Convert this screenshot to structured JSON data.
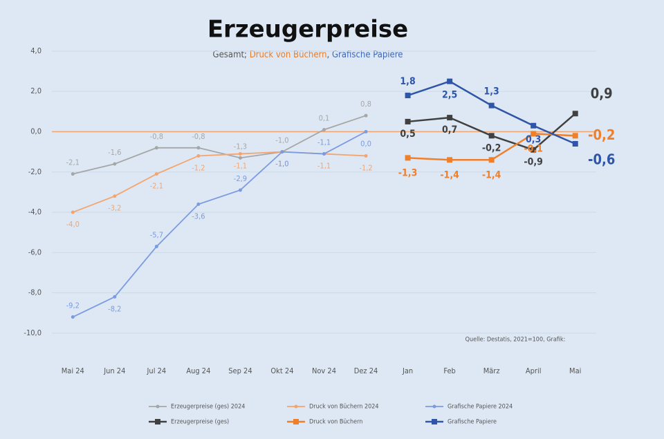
{
  "chart_data": {
    "type": "line",
    "title": "Erzeugerpreise",
    "subtitle": [
      {
        "text": "Gesamt; ",
        "color": "#555555"
      },
      {
        "text": "Druck von Büchern",
        "color": "#e87d2c"
      },
      {
        "text": ", ",
        "color": "#555555"
      },
      {
        "text": "Grafische Papiere",
        "color": "#3f67b5"
      }
    ],
    "source": "Quelle: Destatis, 2021=100, Grafik:",
    "categories": [
      "Mai 24",
      "Jun 24",
      "Jul 24",
      "Aug 24",
      "Sep 24",
      "Okt 24",
      "Nov 24",
      "Dez 24",
      "Jan",
      "Feb",
      "März",
      "April",
      "Mai"
    ],
    "ylim": [
      -10.5,
      4.5
    ],
    "yticks": [
      {
        "value": 4,
        "label": "4,0"
      },
      {
        "value": 2,
        "label": "2,0"
      },
      {
        "value": 0,
        "label": "0,0"
      },
      {
        "value": -2,
        "label": "-2,0"
      },
      {
        "value": -4,
        "label": "-4,0"
      },
      {
        "value": -6,
        "label": "-6,0"
      },
      {
        "value": -8,
        "label": "-8,0"
      },
      {
        "value": -10,
        "label": "-10,0"
      }
    ],
    "grid": true,
    "zero_line_color": "#f2a36b",
    "series": [
      {
        "name": "Erzeugerpreise (ges) 2024",
        "color": "#a6a6a6",
        "style": "light",
        "values": [
          -2.1,
          -1.6,
          -0.8,
          -0.8,
          -1.3,
          -1.0,
          0.1,
          0.8,
          null,
          null,
          null,
          null,
          null
        ],
        "value_labels": [
          "-2,1",
          "-1,6",
          "-0,8",
          "-0,8",
          "-1,3",
          "-1,0",
          "0,1",
          "0,8",
          null,
          null,
          null,
          null,
          null
        ]
      },
      {
        "name": "Druck von Büchern 2024",
        "color": "#f4a46c",
        "style": "light",
        "values": [
          -4.0,
          -3.2,
          -2.1,
          -1.2,
          -1.1,
          -1.0,
          -1.1,
          -1.2,
          null,
          null,
          null,
          null,
          null
        ],
        "value_labels": [
          "-4,0",
          "-3,2",
          "-2,1",
          "-1,2",
          "-1,1",
          "-1,0",
          "-1,1",
          "-1,2",
          null,
          null,
          null,
          null,
          null
        ]
      },
      {
        "name": "Grafische Papiere 2024",
        "color": "#7b9be0",
        "style": "light",
        "values": [
          -9.2,
          -8.2,
          -5.7,
          -3.6,
          -2.9,
          -1.0,
          -1.1,
          0.0,
          null,
          null,
          null,
          null,
          null
        ],
        "value_labels": [
          "-9,2",
          "-8,2",
          "-5,7",
          "-3,6",
          "-2,9",
          "-1,0",
          "-1,1",
          "0,0",
          null,
          null,
          null,
          null,
          null
        ]
      },
      {
        "name": "Erzeugerpreise (ges)",
        "color": "#404040",
        "style": "bold",
        "values": [
          null,
          null,
          null,
          null,
          null,
          null,
          null,
          null,
          0.5,
          0.7,
          -0.2,
          -0.9,
          0.9
        ],
        "value_labels": [
          null,
          null,
          null,
          null,
          null,
          null,
          null,
          null,
          "0,5",
          "0,7",
          "-0,2",
          "-0,9",
          "0,9"
        ]
      },
      {
        "name": "Druck von Büchern",
        "color": "#f07f2a",
        "style": "bold",
        "values": [
          null,
          null,
          null,
          null,
          null,
          null,
          null,
          null,
          -1.3,
          -1.4,
          -1.4,
          -0.1,
          -0.2
        ],
        "value_labels": [
          null,
          null,
          null,
          null,
          null,
          null,
          null,
          null,
          "-1,3",
          "-1,4",
          "-1,4",
          "-0,1",
          "-0,2"
        ]
      },
      {
        "name": "Grafische Papiere",
        "color": "#2f55a8",
        "style": "bold",
        "values": [
          null,
          null,
          null,
          null,
          null,
          null,
          null,
          null,
          1.8,
          2.5,
          1.3,
          0.3,
          -0.6
        ],
        "value_labels": [
          null,
          null,
          null,
          null,
          null,
          null,
          null,
          null,
          "1,8",
          "2,5",
          "1,3",
          "0,3",
          "-0,6"
        ]
      }
    ]
  }
}
